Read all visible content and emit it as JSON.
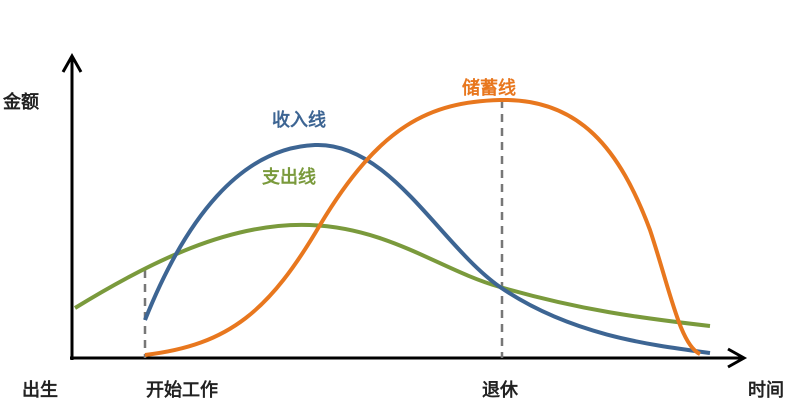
{
  "axes": {
    "y_label": "金额",
    "x_label": "时间"
  },
  "curves": {
    "income": {
      "label": "收入线",
      "color": "#3d6593"
    },
    "expense": {
      "label": "支出线",
      "color": "#7a9a3c"
    },
    "savings": {
      "label": "储蓄线",
      "color": "#e8771e"
    }
  },
  "milestones": {
    "birth": "出生",
    "start_work": "开始工作",
    "retire": "退休"
  }
}
